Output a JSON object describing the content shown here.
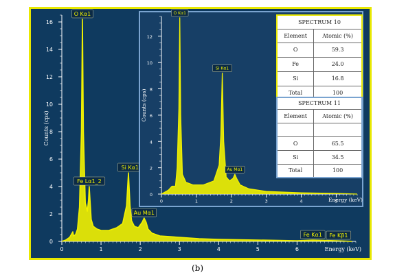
{
  "colors": {
    "background": "#0f3a5f",
    "inset_background": "#173f66",
    "spectrum": "#f2f200",
    "frame": "#e8e800",
    "inset_border": "#7aa4d0",
    "axis": "#ffffff"
  },
  "caption": "(b)",
  "chart_data": [
    {
      "type": "line",
      "ylabel": "Counts (cps)",
      "xlabel": "Energy (keV)",
      "xlim": [
        0,
        7.5
      ],
      "ylim": [
        0,
        16.5
      ],
      "xticks": [
        0,
        1,
        2,
        3,
        4,
        5,
        6
      ],
      "yticks": [
        0,
        2,
        4,
        6,
        8,
        10,
        12,
        14,
        16
      ],
      "x": [
        0.0,
        0.1,
        0.2,
        0.28,
        0.3,
        0.35,
        0.4,
        0.45,
        0.5,
        0.525,
        0.55,
        0.6,
        0.65,
        0.68,
        0.7,
        0.72,
        0.75,
        0.8,
        0.9,
        1.0,
        1.1,
        1.2,
        1.4,
        1.55,
        1.65,
        1.7,
        1.74,
        1.78,
        1.85,
        1.95,
        2.05,
        2.1,
        2.15,
        2.2,
        2.3,
        2.5,
        3.0,
        3.5,
        4.0,
        5.0,
        6.0,
        6.4,
        7.0,
        7.4
      ],
      "y": [
        0.0,
        0.1,
        0.3,
        0.7,
        0.4,
        0.5,
        0.9,
        2.5,
        8.0,
        16.2,
        8.0,
        2.8,
        2.2,
        3.0,
        4.0,
        3.0,
        1.6,
        1.1,
        0.9,
        0.8,
        0.8,
        0.8,
        1.0,
        1.3,
        2.6,
        5.0,
        2.6,
        1.5,
        1.1,
        1.0,
        1.4,
        1.7,
        1.4,
        0.9,
        0.6,
        0.4,
        0.3,
        0.2,
        0.15,
        0.1,
        0.05,
        0.1,
        0.05,
        0.0
      ],
      "annotations": [
        {
          "text": "O Kα1",
          "x": 0.525,
          "y": 16.2
        },
        {
          "text": "Fe Lα1_2",
          "x": 0.7,
          "y": 4.0
        },
        {
          "text": "Si Kα1",
          "x": 1.74,
          "y": 5.0
        },
        {
          "text": "Au Mα1",
          "x": 2.1,
          "y": 1.7
        },
        {
          "text": "Fe Kα1",
          "x": 6.4,
          "y": 0.1
        },
        {
          "text": "Fe Kβ1",
          "x": 7.06,
          "y": 0.05
        }
      ]
    },
    {
      "type": "line",
      "ylabel": "Counts (cps)",
      "xlabel": "Energy (keV)",
      "xlim": [
        0,
        5.6
      ],
      "ylim": [
        0,
        13.5
      ],
      "xticks": [
        0,
        1,
        2,
        3,
        4,
        5
      ],
      "yticks": [
        0,
        2,
        4,
        6,
        8,
        10,
        12
      ],
      "x": [
        0.0,
        0.2,
        0.3,
        0.4,
        0.45,
        0.5,
        0.525,
        0.55,
        0.6,
        0.7,
        0.9,
        1.2,
        1.5,
        1.65,
        1.7,
        1.74,
        1.78,
        1.85,
        1.95,
        2.05,
        2.1,
        2.15,
        2.25,
        2.5,
        3.0,
        4.0,
        5.0,
        5.6
      ],
      "y": [
        0.0,
        0.3,
        0.6,
        0.6,
        2.0,
        6.5,
        13.4,
        6.0,
        1.5,
        0.9,
        0.7,
        0.7,
        1.0,
        2.2,
        4.5,
        9.2,
        4.0,
        1.3,
        1.0,
        1.2,
        1.5,
        1.2,
        0.7,
        0.4,
        0.2,
        0.1,
        0.05,
        0.0
      ],
      "annotations": [
        {
          "text": "O Kα1",
          "x": 0.525,
          "y": 13.4
        },
        {
          "text": "Si Kα1",
          "x": 1.74,
          "y": 9.2
        },
        {
          "text": "Au Mα1",
          "x": 2.1,
          "y": 1.5
        }
      ]
    }
  ],
  "tables": [
    {
      "title": "SPECTRUM 10",
      "headers": [
        "Element",
        "Atomic (%)"
      ],
      "rows": [
        [
          "O",
          "59.3"
        ],
        [
          "Fe",
          "24.0"
        ],
        [
          "Si",
          "16.8"
        ],
        [
          "Total",
          "100"
        ]
      ]
    },
    {
      "title": "SPECTRUM 11",
      "headers": [
        "Element",
        "Atomic (%)"
      ],
      "rows": [
        [
          "O",
          "65.5"
        ],
        [
          "Si",
          "34.5"
        ],
        [
          "Total",
          "100"
        ]
      ]
    }
  ]
}
